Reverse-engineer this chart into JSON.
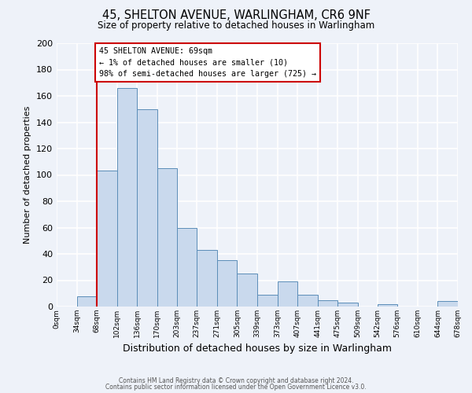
{
  "title": "45, SHELTON AVENUE, WARLINGHAM, CR6 9NF",
  "subtitle": "Size of property relative to detached houses in Warlingham",
  "xlabel": "Distribution of detached houses by size in Warlingham",
  "ylabel": "Number of detached properties",
  "bin_edges": [
    0,
    34,
    68,
    102,
    136,
    170,
    203,
    237,
    271,
    305,
    339,
    373,
    407,
    441,
    475,
    509,
    542,
    576,
    610,
    644,
    678
  ],
  "bin_heights": [
    0,
    8,
    103,
    166,
    150,
    105,
    60,
    43,
    35,
    25,
    9,
    19,
    9,
    5,
    3,
    0,
    2,
    0,
    0,
    4
  ],
  "tick_labels": [
    "0sqm",
    "34sqm",
    "68sqm",
    "102sqm",
    "136sqm",
    "170sqm",
    "203sqm",
    "237sqm",
    "271sqm",
    "305sqm",
    "339sqm",
    "373sqm",
    "407sqm",
    "441sqm",
    "475sqm",
    "509sqm",
    "542sqm",
    "576sqm",
    "610sqm",
    "644sqm",
    "678sqm"
  ],
  "bar_color": "#c9d9ed",
  "bar_edge_color": "#5b8db8",
  "ylim": [
    0,
    200
  ],
  "yticks": [
    0,
    20,
    40,
    60,
    80,
    100,
    120,
    140,
    160,
    180,
    200
  ],
  "vline_x": 68,
  "vline_color": "#cc0000",
  "annotation_title": "45 SHELTON AVENUE: 69sqm",
  "annotation_line1": "← 1% of detached houses are smaller (10)",
  "annotation_line2": "98% of semi-detached houses are larger (725) →",
  "annotation_box_color": "#ffffff",
  "annotation_box_edge": "#cc0000",
  "footer1": "Contains HM Land Registry data © Crown copyright and database right 2024.",
  "footer2": "Contains public sector information licensed under the Open Government Licence v3.0.",
  "background_color": "#eef2f9",
  "grid_color": "#ffffff"
}
